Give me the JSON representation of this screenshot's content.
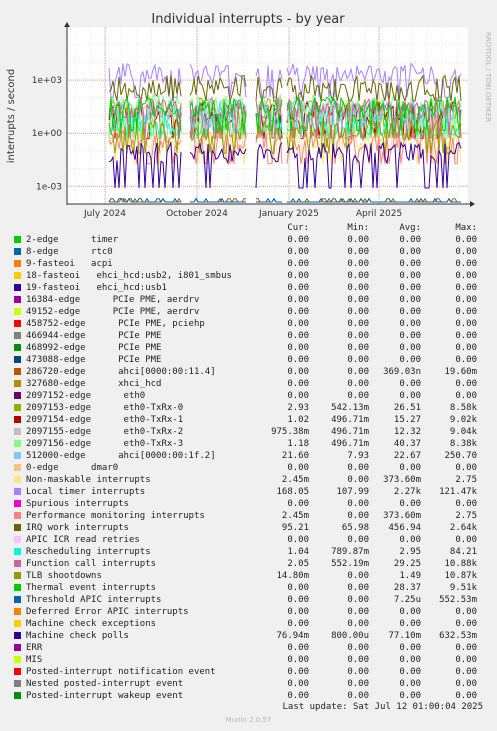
{
  "chart_data": {
    "type": "line",
    "title": "Individual interrupts - by year",
    "ylabel": "interrupts / second",
    "yscale": "log",
    "ylim": [
      0.0001,
      1000000
    ],
    "y_ticks": [
      {
        "value": 0.001,
        "label": "1e-03"
      },
      {
        "value": 1,
        "label": "1e+00"
      },
      {
        "value": 1000,
        "label": "1e+03"
      }
    ],
    "x_ticks": [
      "July 2024",
      "October 2024",
      "January 2025",
      "April 2025"
    ],
    "grid": true,
    "legend_columns": {
      "cur": "Cur:",
      "min": "Min:",
      "avg": "Avg:",
      "max": "Max:"
    },
    "series": [
      {
        "name": "2-edge      timer",
        "color": "#00cc00",
        "cur": "0.00",
        "min": "0.00",
        "avg": "0.00",
        "max": "0.00"
      },
      {
        "name": "8-edge      rtc0",
        "color": "#0066b3",
        "cur": "0.00",
        "min": "0.00",
        "avg": "0.00",
        "max": "0.00"
      },
      {
        "name": "9-fasteoi   acpi",
        "color": "#ff8000",
        "cur": "0.00",
        "min": "0.00",
        "avg": "0.00",
        "max": "0.00"
      },
      {
        "name": "18-fasteoi   ehci_hcd:usb2, i801_smbus",
        "color": "#ffcc00",
        "cur": "0.00",
        "min": "0.00",
        "avg": "0.00",
        "max": "0.00"
      },
      {
        "name": "19-fasteoi   ehci_hcd:usb1",
        "color": "#330099",
        "cur": "0.00",
        "min": "0.00",
        "avg": "0.00",
        "max": "0.00"
      },
      {
        "name": "16384-edge      PCIe PME, aerdrv",
        "color": "#990099",
        "cur": "0.00",
        "min": "0.00",
        "avg": "0.00",
        "max": "0.00"
      },
      {
        "name": "49152-edge      PCIe PME, aerdrv",
        "color": "#ccff00",
        "cur": "0.00",
        "min": "0.00",
        "avg": "0.00",
        "max": "0.00"
      },
      {
        "name": "458752-edge      PCIe PME, pciehp",
        "color": "#ff0000",
        "cur": "0.00",
        "min": "0.00",
        "avg": "0.00",
        "max": "0.00"
      },
      {
        "name": "466944-edge      PCIe PME",
        "color": "#808080",
        "cur": "0.00",
        "min": "0.00",
        "avg": "0.00",
        "max": "0.00"
      },
      {
        "name": "468992-edge      PCIe PME",
        "color": "#008f00",
        "cur": "0.00",
        "min": "0.00",
        "avg": "0.00",
        "max": "0.00"
      },
      {
        "name": "473088-edge      PCIe PME",
        "color": "#00487d",
        "cur": "0.00",
        "min": "0.00",
        "avg": "0.00",
        "max": "0.00"
      },
      {
        "name": "286720-edge      ahci[0000:00:11.4]",
        "color": "#b35a00",
        "cur": "0.00",
        "min": "0.00",
        "avg": "369.03n",
        "max": "19.60m"
      },
      {
        "name": "327680-edge      xhci_hcd",
        "color": "#b38f00",
        "cur": "0.00",
        "min": "0.00",
        "avg": "0.00",
        "max": "0.00"
      },
      {
        "name": "2097152-edge      eth0",
        "color": "#6b006b",
        "cur": "0.00",
        "min": "0.00",
        "avg": "0.00",
        "max": "0.00"
      },
      {
        "name": "2097153-edge      eth0-TxRx-0",
        "color": "#8fb300",
        "cur": "2.93",
        "min": "542.13m",
        "avg": "26.51",
        "max": "8.58k"
      },
      {
        "name": "2097154-edge      eth0-TxRx-1",
        "color": "#b30000",
        "cur": "1.02",
        "min": "496.71m",
        "avg": "15.27",
        "max": "9.02k"
      },
      {
        "name": "2097155-edge      eth0-TxRx-2",
        "color": "#bebebe",
        "cur": "975.38m",
        "min": "496.71m",
        "avg": "12.32",
        "max": "9.04k"
      },
      {
        "name": "2097156-edge      eth0-TxRx-3",
        "color": "#80ff80",
        "cur": "1.18",
        "min": "496.71m",
        "avg": "40.37",
        "max": "8.38k"
      },
      {
        "name": "512000-edge      ahci[0000:00:1f.2]",
        "color": "#80c9ff",
        "cur": "21.60",
        "min": "7.93",
        "avg": "22.67",
        "max": "250.70"
      },
      {
        "name": "0-edge      dmar0",
        "color": "#ffc080",
        "cur": "0.00",
        "min": "0.00",
        "avg": "0.00",
        "max": "0.00"
      },
      {
        "name": "Non-maskable interrupts",
        "color": "#ffe680",
        "cur": "2.45m",
        "min": "0.00",
        "avg": "373.60m",
        "max": "2.75"
      },
      {
        "name": "Local timer interrupts",
        "color": "#aa80ff",
        "cur": "168.05",
        "min": "107.99",
        "avg": "2.27k",
        "max": "121.47k"
      },
      {
        "name": "Spurious interrupts",
        "color": "#ee00cc",
        "cur": "0.00",
        "min": "0.00",
        "avg": "0.00",
        "max": "0.00"
      },
      {
        "name": "Performance monitoring interrupts",
        "color": "#ff8080",
        "cur": "2.45m",
        "min": "0.00",
        "avg": "373.60m",
        "max": "2.75"
      },
      {
        "name": "IRQ work interrupts",
        "color": "#666600",
        "cur": "95.21",
        "min": "65.98",
        "avg": "456.94",
        "max": "2.64k"
      },
      {
        "name": "APIC ICR read retries",
        "color": "#ffbfff",
        "cur": "0.00",
        "min": "0.00",
        "avg": "0.00",
        "max": "0.00"
      },
      {
        "name": "Rescheduling interrupts",
        "color": "#00ffcc",
        "cur": "1.04",
        "min": "789.87m",
        "avg": "2.95",
        "max": "84.21"
      },
      {
        "name": "Function call interrupts",
        "color": "#cc6699",
        "cur": "2.05",
        "min": "552.19m",
        "avg": "29.25",
        "max": "10.88k"
      },
      {
        "name": "TLB shootdowns",
        "color": "#999900",
        "cur": "14.80m",
        "min": "0.00",
        "avg": "1.49",
        "max": "10.87k"
      },
      {
        "name": "Thermal event interrupts",
        "color": "#00cc00",
        "cur": "0.00",
        "min": "0.00",
        "avg": "28.37",
        "max": "9.51k"
      },
      {
        "name": "Threshold APIC interrupts",
        "color": "#0066b3",
        "cur": "0.00",
        "min": "0.00",
        "avg": "7.25u",
        "max": "552.53m"
      },
      {
        "name": "Deferred Error APIC interrupts",
        "color": "#ff8000",
        "cur": "0.00",
        "min": "0.00",
        "avg": "0.00",
        "max": "0.00"
      },
      {
        "name": "Machine check exceptions",
        "color": "#ffcc00",
        "cur": "0.00",
        "min": "0.00",
        "avg": "0.00",
        "max": "0.00"
      },
      {
        "name": "Machine check polls",
        "color": "#330099",
        "cur": "76.94m",
        "min": "800.00u",
        "avg": "77.10m",
        "max": "632.53m"
      },
      {
        "name": "ERR",
        "color": "#990099",
        "cur": "0.00",
        "min": "0.00",
        "avg": "0.00",
        "max": "0.00"
      },
      {
        "name": "MIS",
        "color": "#ccff00",
        "cur": "0.00",
        "min": "0.00",
        "avg": "0.00",
        "max": "0.00"
      },
      {
        "name": "Posted-interrupt notification event",
        "color": "#ff0000",
        "cur": "0.00",
        "min": "0.00",
        "avg": "0.00",
        "max": "0.00"
      },
      {
        "name": "Nested posted-interrupt event",
        "color": "#808080",
        "cur": "0.00",
        "min": "0.00",
        "avg": "0.00",
        "max": "0.00"
      },
      {
        "name": "Posted-interrupt wakeup event",
        "color": "#008f00",
        "cur": "0.00",
        "min": "0.00",
        "avg": "0.00",
        "max": "0.00"
      }
    ]
  },
  "side_label": "RRDTOOL / TOBI OETIKER",
  "footer": {
    "last_update": "Last update: Sat Jul 12 01:00:04 2025",
    "version": "Munin 2.0.57"
  }
}
